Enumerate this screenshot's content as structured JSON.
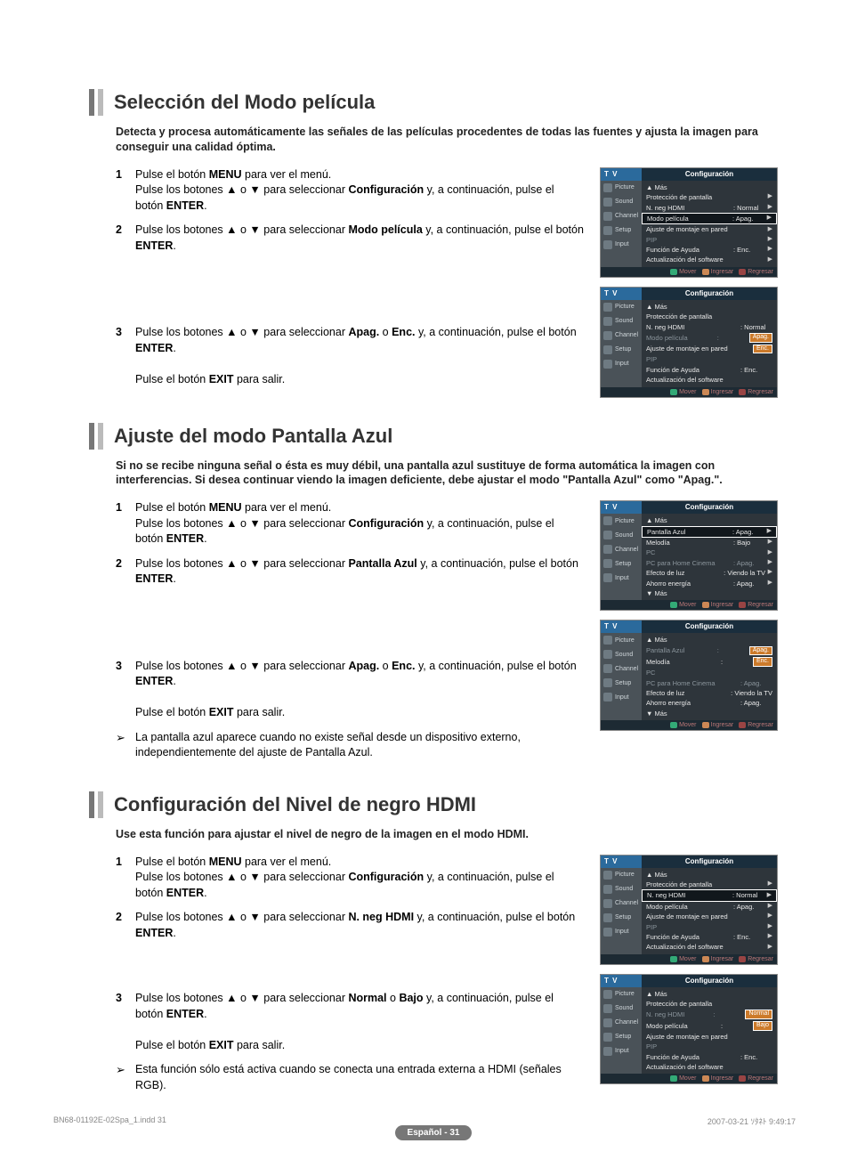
{
  "sections": [
    {
      "title": "Selección del Modo película",
      "desc": "Detecta y procesa automáticamente las señales de las películas procedentes de todas las fuentes y ajusta la imagen para conseguir una calidad óptima.",
      "steps": [
        {
          "num": "1",
          "html": "Pulse el botón <b>MENU</b> para ver el menú.<br>Pulse los botones ▲ o ▼ para seleccionar <b>Configuración</b> y, a continuación, pulse el botón <b>ENTER</b>."
        },
        {
          "num": "2",
          "html": "Pulse los botones ▲ o ▼ para seleccionar <b>Modo película</b> y, a continuación, pulse el botón <b>ENTER</b>."
        },
        {
          "num": "3",
          "html": "Pulse los botones ▲ o ▼ para seleccionar <b>Apag.</b> o <b>Enc.</b> y, a continuación, pulse el botón <b>ENTER</b>.<br><br>Pulse el botón <b>EXIT</b> para salir.",
          "pre_spacer": true
        }
      ],
      "notes": []
    },
    {
      "title": "Ajuste del modo Pantalla Azul",
      "desc": "Si no se recibe ninguna señal o ésta es muy débil, una pantalla azul sustituye de forma automática la imagen con interferencias. Si desea continuar viendo la imagen deficiente, debe ajustar el modo \"Pantalla Azul\" como \"Apag.\".",
      "steps": [
        {
          "num": "1",
          "html": "Pulse el botón <b>MENU</b> para ver el menú.<br>Pulse los botones ▲ o ▼ para seleccionar <b>Configuración</b> y, a continuación, pulse el botón <b>ENTER</b>."
        },
        {
          "num": "2",
          "html": "Pulse los botones ▲ o ▼ para seleccionar <b>Pantalla Azul</b> y, a continuación, pulse el botón <b>ENTER</b>."
        },
        {
          "num": "3",
          "html": "Pulse los botones ▲ o ▼ para seleccionar <b>Apag.</b> o <b>Enc.</b> y, a continuación, pulse el botón <b>ENTER</b>.<br><br>Pulse el botón <b>EXIT</b> para salir.",
          "pre_spacer": true
        }
      ],
      "notes": [
        {
          "html": "La pantalla azul aparece cuando no existe señal desde un dispositivo externo, independientemente del ajuste de Pantalla Azul."
        }
      ]
    },
    {
      "title": "Configuración del Nivel de negro HDMI",
      "desc": "Use esta función para ajustar el nivel de negro de la imagen en el modo HDMI.",
      "steps": [
        {
          "num": "1",
          "html": "Pulse el botón <b>MENU</b> para ver el menú.<br>Pulse los botones ▲ o ▼ para seleccionar <b>Configuración</b> y, a continuación, pulse el botón <b>ENTER</b>."
        },
        {
          "num": "2",
          "html": "Pulse los botones ▲ o ▼ para seleccionar <b>N. neg HDMI</b> y, a continuación, pulse el botón <b>ENTER</b>."
        },
        {
          "num": "3",
          "html": "Pulse los botones ▲ o ▼ para seleccionar <b>Normal</b> o <b>Bajo</b> y, a continuación, pulse el botón <b>ENTER</b>.<br><br>Pulse el botón <b>EXIT</b> para salir.",
          "pre_spacer_sm": true
        }
      ],
      "notes": [
        {
          "html": "Esta función sólo está activa cuando se conecta una entrada externa a HDMI (señales RGB)."
        }
      ]
    }
  ],
  "menus": {
    "side_labels": [
      "Picture",
      "Sound",
      "Channel",
      "Setup",
      "Input"
    ],
    "footer": {
      "move": "Mover",
      "enter": "Ingresar",
      "return": "Regresar"
    },
    "sec1": [
      {
        "header": "Configuración",
        "lines": [
          {
            "label": "▲ Más"
          },
          {
            "label": "Protección de pantalla",
            "arrow": true
          },
          {
            "label": "N. neg HDMI",
            "val": ": Normal",
            "arrow": true
          },
          {
            "label": "Modo película",
            "val": ": Apag.",
            "arrow": true,
            "hl": true
          },
          {
            "label": "Ajuste de montaje en pared",
            "arrow": true
          },
          {
            "label": "PIP",
            "dim": true,
            "arrow": true
          },
          {
            "label": "Función de Ayuda",
            "val": ": Enc.",
            "arrow": true
          },
          {
            "label": "Actualización del software",
            "arrow": true
          }
        ]
      },
      {
        "header": "Configuración",
        "lines": [
          {
            "label": "▲ Más"
          },
          {
            "label": "Protección de pantalla"
          },
          {
            "label": "N. neg HDMI",
            "val": ": Normal"
          },
          {
            "label": "Modo película",
            "val": ":",
            "dim": true,
            "hlval": "Apag."
          },
          {
            "label": "Ajuste de montaje en pared",
            "hlval": "Enc."
          },
          {
            "label": "PIP",
            "dim": true
          },
          {
            "label": "Función de Ayuda",
            "val": ": Enc."
          },
          {
            "label": "Actualización del software"
          }
        ]
      }
    ],
    "sec2": [
      {
        "header": "Configuración",
        "lines": [
          {
            "label": "▲ Más"
          },
          {
            "label": "Pantalla Azul",
            "val": ": Apag.",
            "hl": true,
            "arrow": true
          },
          {
            "label": "Melodía",
            "val": ": Bajo",
            "arrow": true
          },
          {
            "label": "PC",
            "dim": true,
            "arrow": true
          },
          {
            "label": "PC para Home Cinema",
            "val": ": Apag.",
            "dim": true,
            "arrow": true
          },
          {
            "label": "Efecto de luz",
            "val": ": Viendo la TV",
            "arrow": true
          },
          {
            "label": "Ahorro energía",
            "val": ": Apag.",
            "arrow": true
          },
          {
            "label": "▼ Más"
          }
        ]
      },
      {
        "header": "Configuración",
        "lines": [
          {
            "label": "▲ Más"
          },
          {
            "label": "Pantalla Azul",
            "val": ":",
            "dim": true,
            "hlval": "Apag."
          },
          {
            "label": "Melodía",
            "val": ":",
            "hlval": "Enc."
          },
          {
            "label": "PC",
            "dim": true
          },
          {
            "label": "PC para Home Cinema",
            "val": ": Apag.",
            "dim": true
          },
          {
            "label": "Efecto de luz",
            "val": ": Viendo la TV"
          },
          {
            "label": "Ahorro energía",
            "val": ": Apag."
          },
          {
            "label": "▼ Más"
          }
        ]
      }
    ],
    "sec3": [
      {
        "header": "Configuración",
        "lines": [
          {
            "label": "▲ Más"
          },
          {
            "label": "Protección de pantalla",
            "arrow": true
          },
          {
            "label": "N. neg HDMI",
            "val": ": Normal",
            "hl": true,
            "arrow": true
          },
          {
            "label": "Modo película",
            "val": ": Apag.",
            "arrow": true
          },
          {
            "label": "Ajuste de montaje en pared",
            "arrow": true
          },
          {
            "label": "PIP",
            "dim": true,
            "arrow": true
          },
          {
            "label": "Función de Ayuda",
            "val": ": Enc.",
            "arrow": true
          },
          {
            "label": "Actualización del software",
            "arrow": true
          }
        ]
      },
      {
        "header": "Configuración",
        "lines": [
          {
            "label": "▲ Más"
          },
          {
            "label": "Protección de pantalla"
          },
          {
            "label": "N. neg HDMI",
            "val": ":",
            "dim": true,
            "hlval": "Normal"
          },
          {
            "label": "Modo película",
            "val": ":",
            "hlval": "Bajo"
          },
          {
            "label": "Ajuste de montaje en pared"
          },
          {
            "label": "PIP",
            "dim": true
          },
          {
            "label": "Función de Ayuda",
            "val": ": Enc."
          },
          {
            "label": "Actualización del software"
          }
        ]
      }
    ]
  },
  "page_label": "Español - 31",
  "print_meta": {
    "left": "BN68-01192E-02Spa_1.indd   31",
    "right": "2007-03-21   ｿﾀﾈﾄ 9:49:17"
  }
}
